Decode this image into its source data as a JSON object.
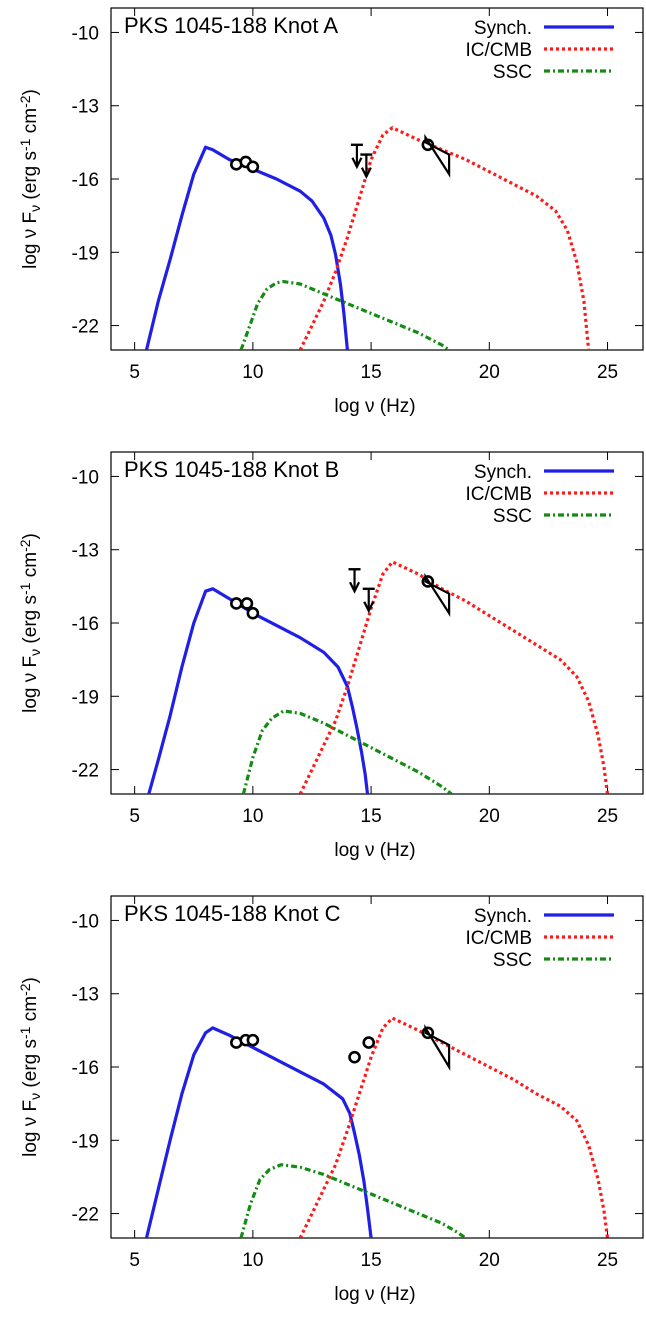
{
  "colors": {
    "synch": "#1f1fe6",
    "ic_cmb": "#ff1a1a",
    "ssc": "#148c14",
    "data": "#000000"
  },
  "chart_data": [
    {
      "type": "line",
      "title": "PKS 1045-188 Knot A",
      "xlabel": "log ν (Hz)",
      "ylabel_parts": [
        "log ν F",
        "ν",
        " (erg s",
        "-1",
        " cm",
        "-2",
        ")"
      ],
      "xlim": [
        4,
        26.5
      ],
      "ylim": [
        -23,
        -9
      ],
      "xticks": [
        "5",
        "10",
        "15",
        "20",
        "25"
      ],
      "xtick_values": [
        5,
        10,
        15,
        20,
        25
      ],
      "yticks": [
        "-10",
        "-13",
        "-16",
        "-19",
        "-22"
      ],
      "ytick_values": [
        -10,
        -13,
        -16,
        -19,
        -22
      ],
      "legend_placement": "top-right",
      "series": [
        {
          "name": "Synch.",
          "style": "solid",
          "color": "#1f1fe6",
          "x": [
            5.5,
            6.0,
            6.5,
            7.0,
            7.5,
            8.0,
            8.3,
            9.0,
            10.0,
            11.0,
            12.0,
            12.5,
            13.0,
            13.3,
            13.5,
            13.7,
            13.85,
            14.0
          ],
          "y": [
            -23,
            -21.0,
            -19.3,
            -17.5,
            -15.8,
            -14.7,
            -14.8,
            -15.2,
            -15.6,
            -16.0,
            -16.5,
            -16.9,
            -17.6,
            -18.3,
            -19.1,
            -20.3,
            -21.5,
            -23
          ]
        },
        {
          "name": "IC/CMB",
          "style": "dotted",
          "color": "#ff1a1a",
          "x": [
            12.0,
            12.5,
            13.0,
            13.5,
            14.0,
            14.5,
            15.0,
            15.5,
            15.9,
            17.0,
            18.0,
            19.0,
            20.0,
            21.0,
            22.0,
            22.8,
            23.3,
            23.7,
            24.0,
            24.2
          ],
          "y": [
            -23,
            -22.0,
            -21.0,
            -19.8,
            -18.4,
            -16.8,
            -15.2,
            -14.2,
            -13.9,
            -14.4,
            -14.8,
            -15.2,
            -15.7,
            -16.2,
            -16.7,
            -17.3,
            -18.1,
            -19.4,
            -21.0,
            -23
          ]
        },
        {
          "name": "SSC",
          "style": "dashdot",
          "color": "#148c14",
          "x": [
            9.5,
            9.8,
            10.2,
            10.6,
            11.0,
            11.3,
            12.0,
            13.0,
            14.0,
            15.0,
            16.0,
            17.0,
            18.0,
            18.3
          ],
          "y": [
            -23,
            -22.2,
            -21.1,
            -20.5,
            -20.25,
            -20.2,
            -20.3,
            -20.7,
            -21.1,
            -21.5,
            -21.9,
            -22.3,
            -22.8,
            -23
          ]
        }
      ],
      "points": {
        "x": [
          9.3,
          9.7,
          10.0,
          17.4
        ],
        "y": [
          -15.4,
          -15.3,
          -15.5,
          -14.6
        ]
      },
      "upper_limits": {
        "x": [
          14.4,
          14.8
        ],
        "y": [
          -14.6,
          -15.0
        ]
      },
      "bowtie": {
        "x": [
          17.3,
          18.3
        ],
        "y_top": [
          -14.3,
          -15.0
        ],
        "y_bottom": [
          -14.5,
          -15.8
        ]
      }
    },
    {
      "type": "line",
      "title": "PKS 1045-188 Knot B",
      "xlabel": "log ν (Hz)",
      "ylabel_parts": [
        "log ν F",
        "ν",
        " (erg s",
        "-1",
        " cm",
        "-2",
        ")"
      ],
      "xlim": [
        4,
        26.5
      ],
      "ylim": [
        -23,
        -9
      ],
      "xticks": [
        "5",
        "10",
        "15",
        "20",
        "25"
      ],
      "xtick_values": [
        5,
        10,
        15,
        20,
        25
      ],
      "yticks": [
        "-10",
        "-13",
        "-16",
        "-19",
        "-22"
      ],
      "ytick_values": [
        -10,
        -13,
        -16,
        -19,
        -22
      ],
      "legend_placement": "top-right",
      "series": [
        {
          "name": "Synch.",
          "style": "solid",
          "color": "#1f1fe6",
          "x": [
            5.6,
            6.0,
            6.5,
            7.0,
            7.5,
            8.0,
            8.3,
            9.0,
            10.0,
            11.0,
            12.0,
            13.0,
            13.6,
            14.0,
            14.2,
            14.4,
            14.6,
            14.75,
            14.85
          ],
          "y": [
            -23,
            -21.6,
            -19.8,
            -17.8,
            -16.0,
            -14.7,
            -14.6,
            -15.0,
            -15.6,
            -16.1,
            -16.6,
            -17.2,
            -17.8,
            -18.6,
            -19.4,
            -20.3,
            -21.3,
            -22.2,
            -23
          ]
        },
        {
          "name": "IC/CMB",
          "style": "dotted",
          "color": "#ff1a1a",
          "x": [
            12.0,
            12.5,
            13.0,
            13.5,
            14.0,
            14.5,
            15.0,
            15.5,
            15.9,
            17.0,
            18.0,
            19.0,
            20.0,
            21.0,
            22.0,
            23.0,
            23.7,
            24.2,
            24.6,
            24.85,
            25.0
          ],
          "y": [
            -23,
            -22.0,
            -21.0,
            -20.0,
            -18.6,
            -17.0,
            -15.4,
            -14.0,
            -13.5,
            -14.0,
            -14.6,
            -15.1,
            -15.7,
            -16.3,
            -16.9,
            -17.5,
            -18.2,
            -19.2,
            -20.6,
            -21.9,
            -23
          ]
        },
        {
          "name": "SSC",
          "style": "dashdot",
          "color": "#148c14",
          "x": [
            9.6,
            10.0,
            10.4,
            10.8,
            11.3,
            12.0,
            13.0,
            14.0,
            15.0,
            16.0,
            17.0,
            18.0,
            18.4
          ],
          "y": [
            -23,
            -21.5,
            -20.4,
            -19.9,
            -19.6,
            -19.7,
            -20.1,
            -20.6,
            -21.1,
            -21.6,
            -22.1,
            -22.7,
            -23
          ]
        }
      ],
      "points": {
        "x": [
          9.3,
          9.75,
          10.0,
          17.4
        ],
        "y": [
          -15.2,
          -15.2,
          -15.6,
          -14.3
        ]
      },
      "upper_limits": {
        "x": [
          14.3,
          14.9
        ],
        "y": [
          -13.8,
          -14.6
        ]
      },
      "bowtie": {
        "x": [
          17.3,
          18.3
        ],
        "y_top": [
          -14.1,
          -14.8
        ],
        "y_bottom": [
          -14.3,
          -15.6
        ]
      }
    },
    {
      "type": "line",
      "title": "PKS 1045-188 Knot C",
      "xlabel": "log ν (Hz)",
      "ylabel_parts": [
        "log ν F",
        "ν",
        " (erg s",
        "-1",
        " cm",
        "-2",
        ")"
      ],
      "xlim": [
        4,
        26.5
      ],
      "ylim": [
        -23,
        -9
      ],
      "xticks": [
        "5",
        "10",
        "15",
        "20",
        "25"
      ],
      "xtick_values": [
        5,
        10,
        15,
        20,
        25
      ],
      "yticks": [
        "-10",
        "-13",
        "-16",
        "-19",
        "-22"
      ],
      "ytick_values": [
        -10,
        -13,
        -16,
        -19,
        -22
      ],
      "legend_placement": "top-right",
      "series": [
        {
          "name": "Synch.",
          "style": "solid",
          "color": "#1f1fe6",
          "x": [
            5.5,
            6.0,
            6.5,
            7.0,
            7.5,
            8.0,
            8.3,
            9.0,
            10.0,
            11.0,
            12.0,
            13.0,
            13.8,
            14.1,
            14.3,
            14.5,
            14.7,
            14.85,
            15.0
          ],
          "y": [
            -23,
            -21.0,
            -19.0,
            -17.1,
            -15.5,
            -14.6,
            -14.4,
            -14.7,
            -15.2,
            -15.7,
            -16.2,
            -16.7,
            -17.3,
            -17.9,
            -18.7,
            -19.6,
            -20.7,
            -21.8,
            -23
          ]
        },
        {
          "name": "IC/CMB",
          "style": "dotted",
          "color": "#ff1a1a",
          "x": [
            12.0,
            12.5,
            13.0,
            13.5,
            14.0,
            14.5,
            15.0,
            15.5,
            15.9,
            17.0,
            18.0,
            19.0,
            20.0,
            21.0,
            22.0,
            23.0,
            23.7,
            24.2,
            24.6,
            24.85,
            25.0
          ],
          "y": [
            -23,
            -22.0,
            -21.0,
            -20.0,
            -18.6,
            -17.1,
            -15.6,
            -14.4,
            -14.0,
            -14.5,
            -15.0,
            -15.5,
            -16.0,
            -16.5,
            -17.1,
            -17.6,
            -18.2,
            -19.2,
            -20.6,
            -21.9,
            -23
          ]
        },
        {
          "name": "SSC",
          "style": "dashdot",
          "color": "#148c14",
          "x": [
            9.5,
            9.9,
            10.3,
            10.7,
            11.2,
            12.0,
            13.0,
            14.0,
            15.0,
            16.0,
            17.0,
            18.0,
            18.7,
            19.0
          ],
          "y": [
            -23,
            -21.6,
            -20.6,
            -20.2,
            -20.0,
            -20.1,
            -20.4,
            -20.8,
            -21.2,
            -21.6,
            -22.0,
            -22.4,
            -22.8,
            -23
          ]
        }
      ],
      "points": {
        "x": [
          9.3,
          9.7,
          10.0,
          14.3,
          14.9,
          17.4
        ],
        "y": [
          -15.0,
          -14.9,
          -14.9,
          -15.6,
          -15.0,
          -14.6
        ]
      },
      "upper_limits": {
        "x": [],
        "y": []
      },
      "bowtie": {
        "x": [
          17.3,
          18.3
        ],
        "y_top": [
          -14.4,
          -15.1
        ],
        "y_bottom": [
          -14.6,
          -16.0
        ]
      }
    }
  ]
}
